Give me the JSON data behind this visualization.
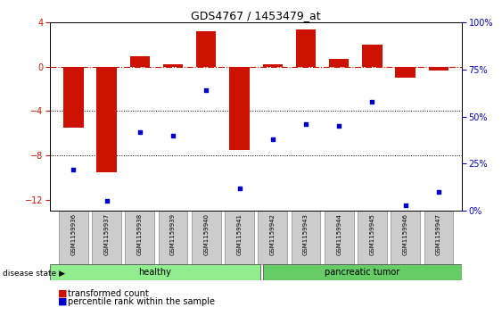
{
  "title": "GDS4767 / 1453479_at",
  "samples": [
    "GSM1159936",
    "GSM1159937",
    "GSM1159938",
    "GSM1159939",
    "GSM1159940",
    "GSM1159941",
    "GSM1159942",
    "GSM1159943",
    "GSM1159944",
    "GSM1159945",
    "GSM1159946",
    "GSM1159947"
  ],
  "bar_values": [
    -5.5,
    -9.5,
    1.0,
    0.2,
    3.2,
    -7.5,
    0.2,
    3.4,
    0.7,
    2.0,
    -1.0,
    -0.3
  ],
  "dot_values_pct": [
    22,
    5,
    42,
    40,
    64,
    12,
    38,
    46,
    45,
    58,
    3,
    10
  ],
  "ylim_left": [
    -13,
    4
  ],
  "ylim_right": [
    0,
    100
  ],
  "bar_color": "#cc1100",
  "dot_color": "#0000cc",
  "hline_color": "#cc1100",
  "grid_color": "#000000",
  "healthy_color": "#90ee90",
  "tumor_color": "#66cc66",
  "disease_groups": [
    {
      "label": "healthy",
      "count": 6
    },
    {
      "label": "pancreatic tumor",
      "count": 6
    }
  ],
  "legend_bar_label": "transformed count",
  "legend_dot_label": "percentile rank within the sample",
  "disease_state_label": "disease state",
  "tick_positions_left": [
    -12,
    -8,
    -4,
    0,
    4
  ],
  "tick_positions_right": [
    0,
    25,
    50,
    75,
    100
  ]
}
